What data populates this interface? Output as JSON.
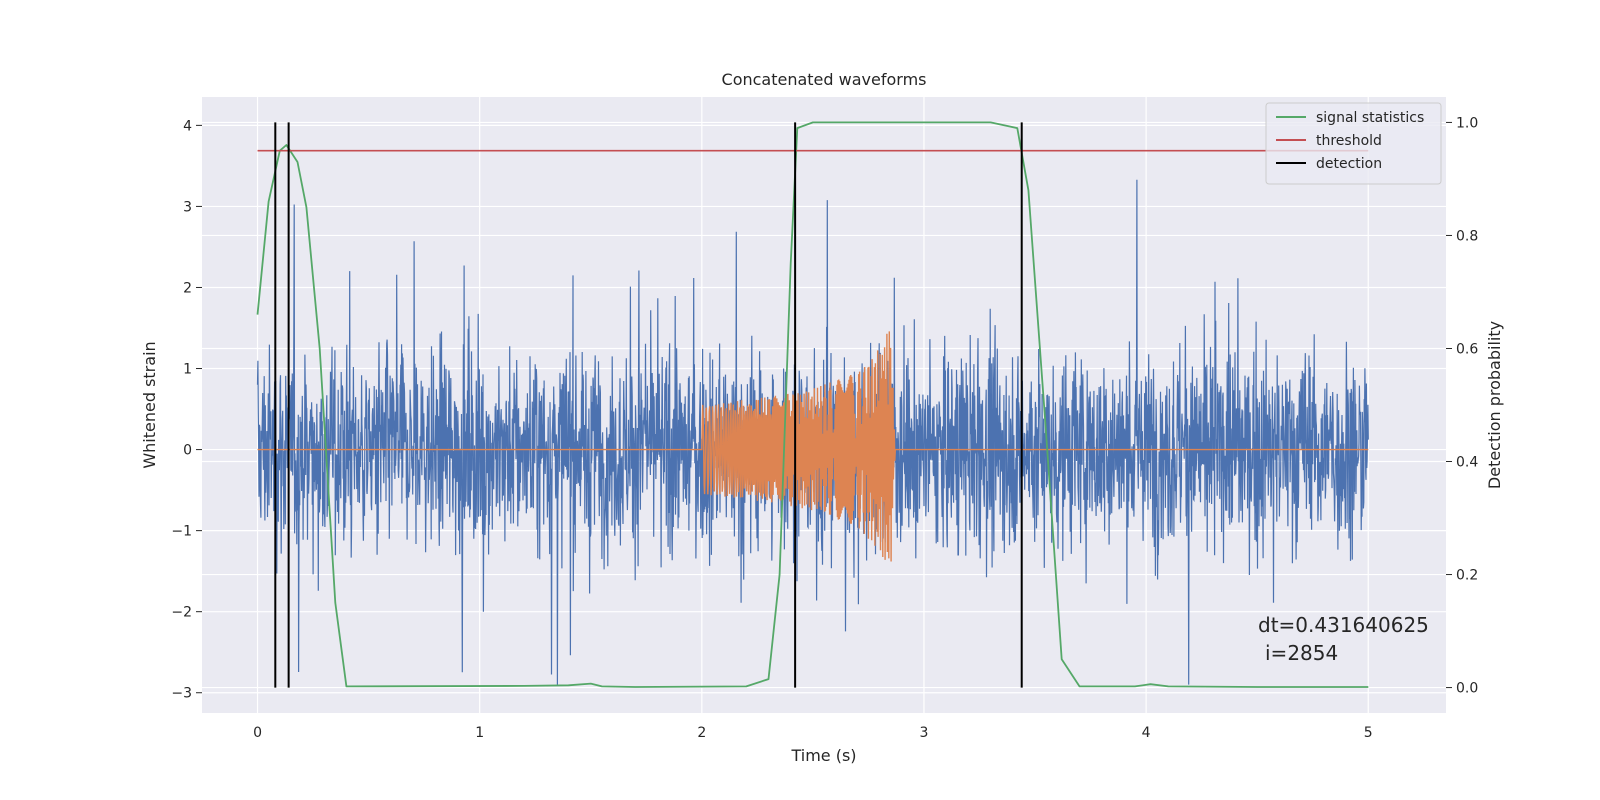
{
  "chart_data": {
    "type": "line",
    "title": "Concatenated waveforms",
    "xlabel": "Time (s)",
    "ylabel": "Whitened strain",
    "ylabel_right": "Detection probability",
    "xlim": [
      -0.25,
      5.35
    ],
    "ylim": [
      -3.25,
      4.35
    ],
    "ylim_right": [
      -0.045,
      1.045
    ],
    "x_ticks": [
      0,
      1,
      2,
      3,
      4,
      5
    ],
    "x_tick_labels": [
      "0",
      "1",
      "2",
      "3",
      "4",
      "5"
    ],
    "y_ticks": [
      -3,
      -2,
      -1,
      0,
      1,
      2,
      3,
      4
    ],
    "y_tick_labels": [
      "−3",
      "−2",
      "−1",
      "0",
      "1",
      "2",
      "3",
      "4"
    ],
    "y2_ticks": [
      0,
      0.2,
      0.4,
      0.6,
      0.8,
      1.0
    ],
    "y2_tick_labels": [
      "0.0",
      "0.2",
      "0.4",
      "0.6",
      "0.8",
      "1.0"
    ],
    "grid": true,
    "legend_position": "upper right",
    "series": [
      {
        "name": "",
        "role": "noisy strain",
        "axis": "left",
        "color": "#4c72b0",
        "x_range": [
          0,
          5
        ],
        "approx_amplitude": 1.0,
        "peak": 4.0,
        "trough": -2.9
      },
      {
        "name": "",
        "role": "injected waveform",
        "axis": "left",
        "color": "#dd8452",
        "x_range": [
          0,
          5
        ],
        "x": [
          0,
          2.0,
          2.3,
          2.5,
          2.7,
          2.8,
          2.85,
          2.87,
          5
        ],
        "amplitude": [
          0,
          0.55,
          0.65,
          0.75,
          0.95,
          1.25,
          1.55,
          0.05,
          0
        ]
      },
      {
        "name": "signal statistics",
        "axis": "right",
        "color": "#55a868",
        "x": [
          0,
          0.05,
          0.1,
          0.13,
          0.18,
          0.22,
          0.28,
          0.35,
          0.4,
          1.2,
          1.4,
          1.5,
          1.55,
          1.7,
          2.2,
          2.3,
          2.35,
          2.4,
          2.43,
          2.5,
          3.3,
          3.42,
          3.47,
          3.55,
          3.62,
          3.7,
          3.95,
          4.02,
          4.1,
          4.5,
          5.0
        ],
        "y": [
          0.66,
          0.86,
          0.95,
          0.96,
          0.93,
          0.85,
          0.6,
          0.15,
          0.002,
          0.003,
          0.004,
          0.007,
          0.002,
          0.001,
          0.002,
          0.015,
          0.2,
          0.75,
          0.99,
          1.0,
          1.0,
          0.99,
          0.88,
          0.45,
          0.05,
          0.002,
          0.002,
          0.006,
          0.002,
          0.001,
          0.001
        ]
      },
      {
        "name": "threshold",
        "axis": "right",
        "color": "#c44e52",
        "x": [
          0,
          5
        ],
        "y": [
          0.95,
          0.95
        ]
      },
      {
        "name": "detection",
        "axis": "right",
        "color": "#000000",
        "type": "vlines",
        "x": [
          0.08,
          0.14,
          2.42,
          3.44
        ],
        "ymin": 0,
        "ymax": 1
      }
    ],
    "annotations": [
      "dt=0.431640625",
      "i=2854"
    ]
  }
}
